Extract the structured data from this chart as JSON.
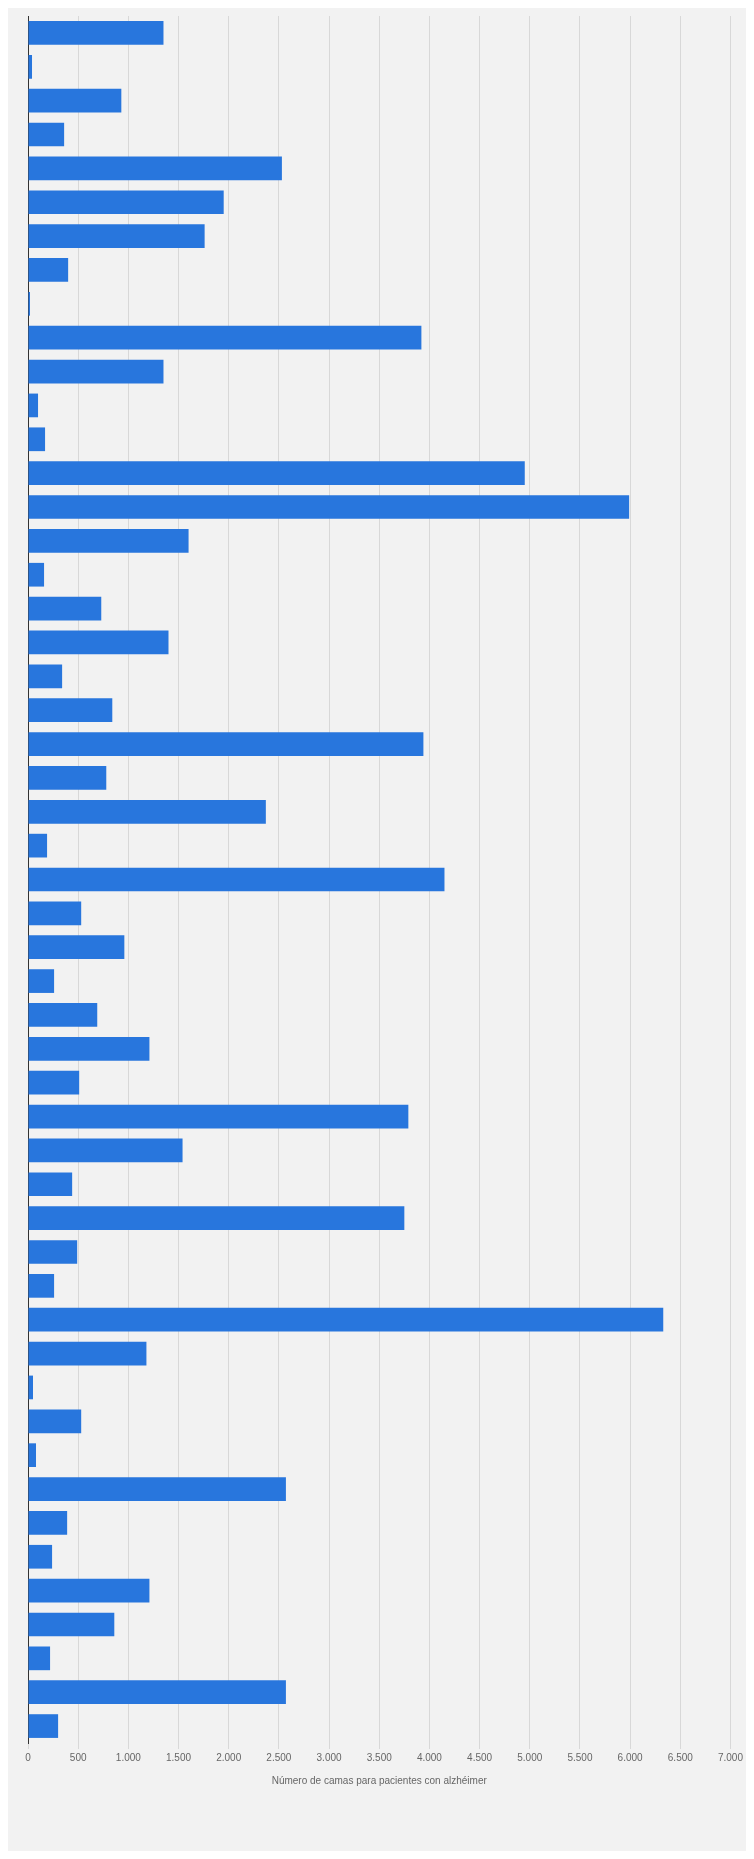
{
  "chart_data": {
    "type": "bar",
    "orientation": "horizontal",
    "xlabel": "Número de camas para pacientes con alzhéimer",
    "categories": [
      null,
      null,
      null,
      null,
      null,
      null,
      null,
      null,
      null,
      null,
      null,
      null,
      null,
      null,
      null,
      null,
      null,
      null,
      null,
      null,
      null,
      null,
      null,
      null,
      null,
      null,
      null,
      null,
      null,
      null,
      null,
      null,
      null,
      null,
      null,
      null,
      null,
      null,
      null,
      null,
      null,
      null,
      null,
      null,
      null,
      null,
      null,
      null,
      null,
      null,
      null
    ],
    "values": [
      1350,
      40,
      930,
      360,
      2530,
      1950,
      1760,
      400,
      20,
      3920,
      1350,
      100,
      170,
      4950,
      5990,
      1600,
      160,
      730,
      1400,
      340,
      840,
      3940,
      780,
      2370,
      190,
      4150,
      530,
      960,
      260,
      690,
      1210,
      510,
      3790,
      1540,
      440,
      3750,
      490,
      260,
      6330,
      1180,
      50,
      530,
      80,
      2570,
      390,
      240,
      1210,
      860,
      220,
      2570,
      300
    ],
    "color": "#2876dd",
    "xlim": [
      0,
      7000
    ],
    "xticks": [
      0,
      500,
      {
        "value": 1000,
        "label": "1.000"
      },
      {
        "value": 1500,
        "label": "1.500"
      },
      {
        "value": 2000,
        "label": "2.000"
      },
      {
        "value": 2500,
        "label": "2.500"
      },
      {
        "value": 3000,
        "label": "3.000"
      },
      {
        "value": 3500,
        "label": "3.500"
      },
      {
        "value": 4000,
        "label": "4.000"
      },
      {
        "value": 4500,
        "label": "4.500"
      },
      {
        "value": 5000,
        "label": "5.000"
      },
      {
        "value": 5500,
        "label": "5.500"
      },
      {
        "value": 6000,
        "label": "6.000"
      },
      {
        "value": 6500,
        "label": "6.500"
      },
      {
        "value": 7000,
        "label": "7.000"
      }
    ],
    "grid": "x",
    "tick_labels": "x",
    "legend": false
  }
}
